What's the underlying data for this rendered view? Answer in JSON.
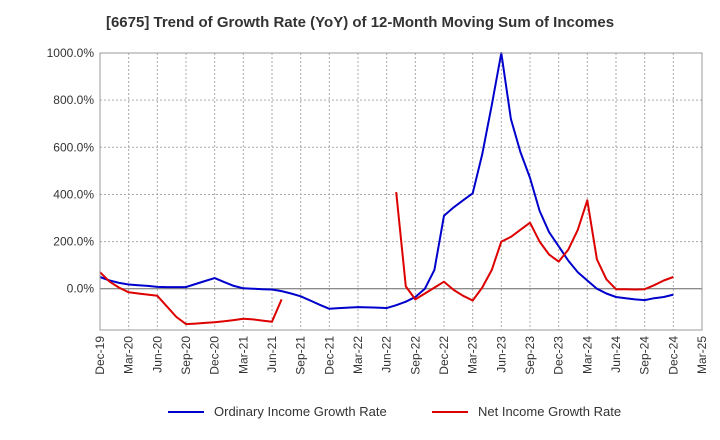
{
  "chart_data": {
    "type": "line",
    "title": "[6675]  Trend of Growth Rate (YoY) of 12-Month Moving Sum of Incomes",
    "xlabel": "",
    "ylabel": "",
    "ylim": [
      -175,
      1000
    ],
    "yticks": [
      0,
      200,
      400,
      600,
      800,
      1000
    ],
    "ytick_labels": [
      "0.0%",
      "200.0%",
      "400.0%",
      "600.0%",
      "800.0%",
      "1000.0%"
    ],
    "x_ticks": [
      "Dec-19",
      "Mar-20",
      "Jun-20",
      "Sep-20",
      "Dec-20",
      "Mar-21",
      "Jun-21",
      "Sep-21",
      "Dec-21",
      "Mar-22",
      "Jun-22",
      "Sep-22",
      "Dec-22",
      "Mar-23",
      "Jun-23",
      "Sep-23",
      "Dec-23",
      "Mar-24",
      "Jun-24",
      "Sep-24",
      "Dec-24",
      "Mar-25"
    ],
    "grid": true,
    "legend_position": "bottom",
    "series": [
      {
        "name": "Ordinary Income Growth Rate",
        "color": "#0000cc",
        "x": [
          "Dec-19",
          "Jan-20",
          "Feb-20",
          "Mar-20",
          "Apr-20",
          "May-20",
          "Jun-20",
          "Jul-20",
          "Aug-20",
          "Sep-20",
          "Oct-20",
          "Nov-20",
          "Dec-20",
          "Jan-21",
          "Feb-21",
          "Mar-21",
          "Apr-21",
          "May-21",
          "Jun-21",
          "Jul-21",
          "Aug-21",
          "Sep-21",
          "Oct-21",
          "Nov-21",
          "Dec-21",
          "Jan-22",
          "Feb-22",
          "Mar-22",
          "Apr-22",
          "May-22",
          "Jun-22",
          "Jul-22",
          "Aug-22",
          "Sep-22",
          "Oct-22",
          "Nov-22",
          "Dec-22",
          "Jan-23",
          "Feb-23",
          "Mar-23",
          "Apr-23",
          "May-23",
          "Jun-23",
          "Jul-23",
          "Aug-23",
          "Sep-23",
          "Oct-23",
          "Nov-23",
          "Dec-23",
          "Jan-24",
          "Feb-24",
          "Mar-24",
          "Apr-24",
          "May-24",
          "Jun-24",
          "Jul-24",
          "Aug-24",
          "Sep-24",
          "Oct-24",
          "Nov-24",
          "Dec-24"
        ],
        "values": [
          50,
          35,
          25,
          18,
          15,
          12,
          8,
          7,
          7,
          7,
          20,
          33,
          45,
          28,
          12,
          2,
          0,
          -2,
          -3,
          -10,
          -20,
          -32,
          -50,
          -68,
          -85,
          -82,
          -80,
          -78,
          -79,
          -80,
          -82,
          -70,
          -55,
          -35,
          0,
          80,
          310,
          345,
          375,
          405,
          570,
          780,
          1000,
          720,
          580,
          470,
          330,
          240,
          180,
          120,
          70,
          35,
          0,
          -20,
          -35,
          -40,
          -45,
          -48,
          -40,
          -35,
          -25
        ]
      },
      {
        "name": "Net Income Growth Rate",
        "color": "#dd0000",
        "x": [
          "Dec-19",
          "Jan-20",
          "Feb-20",
          "Mar-20",
          "Apr-20",
          "May-20",
          "Jun-20",
          "Jul-20",
          "Aug-20",
          "Sep-20",
          "Oct-20",
          "Nov-20",
          "Dec-20",
          "Jan-21",
          "Feb-21",
          "Mar-21",
          "Apr-21",
          "May-21",
          "Jun-21",
          "Jul-21",
          null,
          "Jul-22",
          "Aug-22",
          "Sep-22",
          "Oct-22",
          "Nov-22",
          "Dec-22",
          "Jan-23",
          "Feb-23",
          "Mar-23",
          "Apr-23",
          "May-23",
          "Jun-23",
          "Jul-23",
          "Aug-23",
          "Sep-23",
          "Oct-23",
          "Nov-23",
          "Dec-23",
          "Jan-24",
          "Feb-24",
          "Mar-24",
          "Apr-24",
          "May-24",
          "Jun-24",
          "Jul-24",
          "Aug-24",
          "Sep-24",
          "Oct-24",
          "Nov-24",
          "Dec-24"
        ],
        "values": [
          70,
          30,
          5,
          -15,
          -20,
          -25,
          -30,
          -75,
          -120,
          -150,
          -148,
          -145,
          -142,
          -138,
          -133,
          -127,
          -130,
          -135,
          -140,
          -45,
          null,
          410,
          10,
          -45,
          -20,
          5,
          30,
          -5,
          -30,
          -50,
          5,
          80,
          200,
          220,
          250,
          280,
          200,
          145,
          115,
          165,
          250,
          375,
          125,
          40,
          -2,
          -2,
          -3,
          -2,
          15,
          35,
          50
        ]
      }
    ]
  }
}
